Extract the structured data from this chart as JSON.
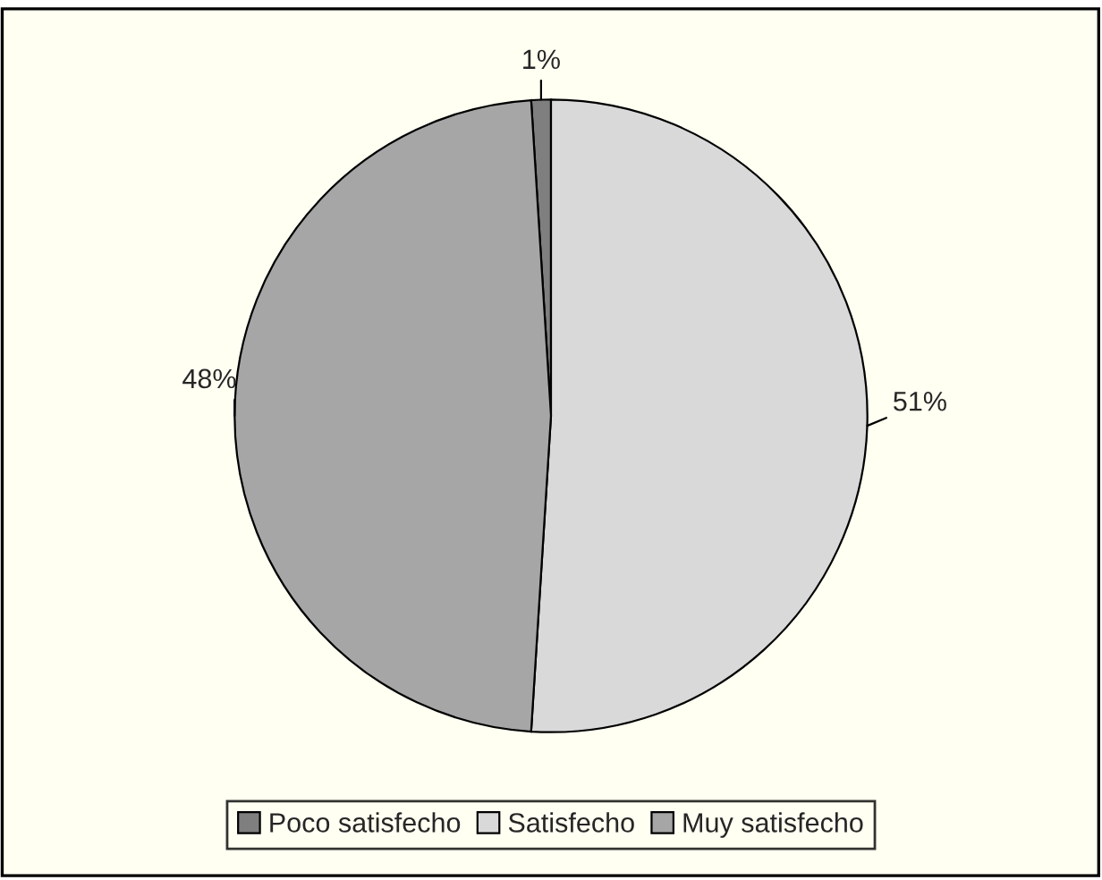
{
  "chart_data": {
    "type": "pie",
    "categories": [
      "Poco satisfecho",
      "Satisfecho",
      "Muy satisfecho"
    ],
    "values": [
      1,
      51,
      48
    ],
    "colors": [
      "#7f7f7f",
      "#d9d9d9",
      "#a6a6a6"
    ],
    "value_labels": [
      "1%",
      "51%",
      "48%"
    ],
    "legend": "bottom"
  }
}
